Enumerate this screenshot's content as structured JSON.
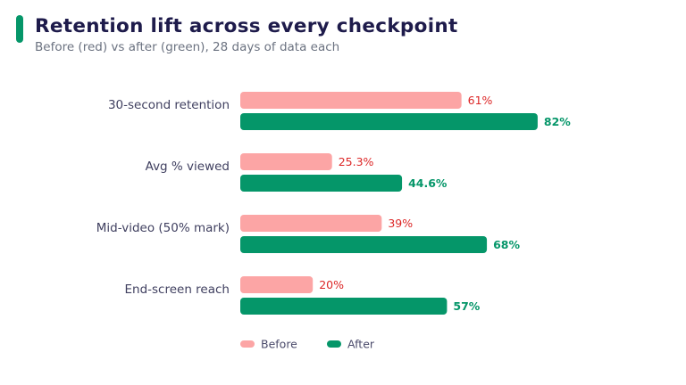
{
  "header": {
    "title": "Retention lift across every checkpoint",
    "subtitle": "Before (red) vs after (green), 28 days of data each"
  },
  "colors": {
    "accent": "#059669",
    "before": "#fca5a5",
    "after": "#059669",
    "before_text": "#dc2626",
    "after_text": "#059669"
  },
  "chart_data": {
    "type": "bar",
    "orientation": "horizontal",
    "title": "Retention lift across every checkpoint",
    "subtitle": "Before (red) vs after (green), 28 days of data each",
    "categories": [
      "30-second retention",
      "Avg % viewed",
      "Mid-video (50% mark)",
      "End-screen reach"
    ],
    "series": [
      {
        "name": "Before",
        "values": [
          61,
          25.3,
          39,
          20
        ],
        "labels": [
          "61%",
          "25.3%",
          "39%",
          "20%"
        ]
      },
      {
        "name": "After",
        "values": [
          82,
          44.6,
          68,
          57
        ],
        "labels": [
          "82%",
          "44.6%",
          "68%",
          "57%"
        ]
      }
    ],
    "xlim": [
      0,
      100
    ],
    "grid": false,
    "legend": "bottom"
  }
}
